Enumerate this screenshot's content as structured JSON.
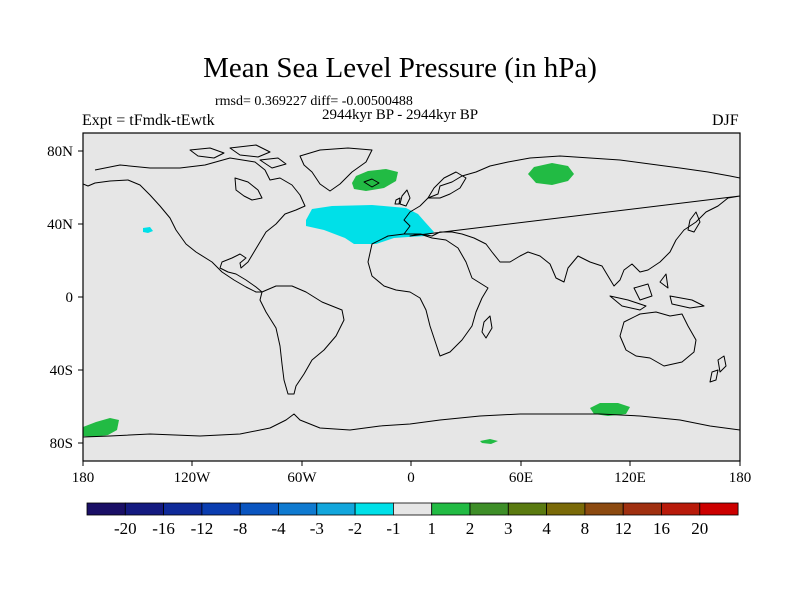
{
  "title": "Mean Sea Level Pressure (in hPa)",
  "stats_line": "rmsd= 0.369227 diff= -0.00500488",
  "period_line": "2944kyr BP - 2944kyr BP",
  "experiment": "Expt = tFmdk-tEwtk",
  "season": "DJF",
  "axes": {
    "lat_ticks": [
      "80N",
      "40N",
      "0",
      "40S",
      "80S"
    ],
    "lon_ticks": [
      "180",
      "120W",
      "60W",
      "0",
      "60E",
      "120E",
      "180"
    ]
  },
  "colorbar": {
    "labels": [
      "-20",
      "-16",
      "-12",
      "-8",
      "-4",
      "-3",
      "-2",
      "-1",
      "1",
      "2",
      "3",
      "4",
      "8",
      "12",
      "16",
      "20"
    ],
    "colors": [
      "#1a0f66",
      "#141a80",
      "#0f2a99",
      "#0a3db0",
      "#0a55c0",
      "#0f7ad0",
      "#12a6dc",
      "#00e0e8",
      "#e6e6e6",
      "#22bb44",
      "#3e8e28",
      "#5a7a10",
      "#7a6a08",
      "#8c4a10",
      "#a03010",
      "#b81a0a",
      "#cc0000"
    ]
  },
  "colors": {
    "ocean_fill": "#e6e6e6",
    "positive_anomaly": "#22bb44",
    "negative_anomaly": "#00e0e8",
    "coastline": "#000000"
  },
  "chart_data": {
    "type": "heatmap",
    "projection": "cylindrical equidistant",
    "title": "Mean Sea Level Pressure (in hPa)",
    "xlim": [
      -180,
      180
    ],
    "ylim": [
      -90,
      90
    ],
    "levels": [
      -20,
      -16,
      -12,
      -8,
      -4,
      -3,
      -2,
      -1,
      1,
      2,
      3,
      4,
      8,
      12,
      16,
      20
    ],
    "anomaly_regions": [
      {
        "name": "north-atlantic-low",
        "bin": "-2 to -1",
        "lon_range": [
          -52,
          8
        ],
        "lat_range": [
          30,
          47
        ]
      },
      {
        "name": "greenland-sea-high",
        "bin": "1 to 2",
        "lon_range": [
          -30,
          -6
        ],
        "lat_range": [
          62,
          72
        ]
      },
      {
        "name": "west-siberia-high",
        "bin": "1 to 2",
        "lon_range": [
          64,
          96
        ],
        "lat_range": [
          64,
          73
        ]
      },
      {
        "name": "pacific-small-low",
        "bin": "-2 to -1",
        "lon_range": [
          -134,
          -128
        ],
        "lat_range": [
          35,
          38
        ]
      },
      {
        "name": "southeast-pacific-antarctic-high",
        "bin": "1 to 2",
        "lon_range": [
          -180,
          -160
        ],
        "lat_range": [
          -84,
          -67
        ]
      },
      {
        "name": "east-antarctic-ocean-high",
        "bin": "1 to 2",
        "lon_range": [
          98,
          122
        ],
        "lat_range": [
          -67,
          -60
        ]
      },
      {
        "name": "antarctic-small-high",
        "bin": "1 to 2",
        "lon_range": [
          37,
          46
        ],
        "lat_range": [
          -82,
          -79
        ]
      }
    ]
  }
}
